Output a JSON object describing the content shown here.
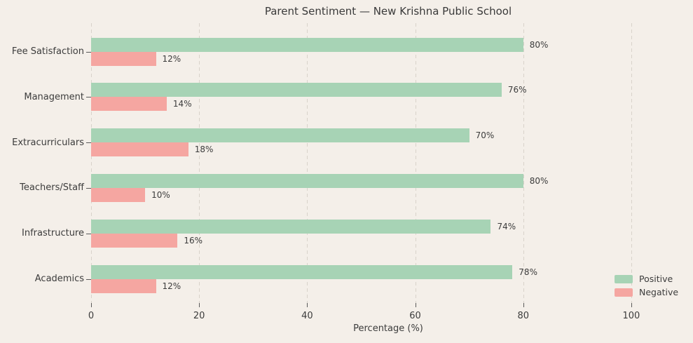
{
  "title": "Parent Sentiment — New Krishna Public School",
  "colors": {
    "background": "#f4efe9",
    "positive": "#a7d3b5",
    "negative": "#f5a6a1",
    "text": "#3c3c3c",
    "gridline": "#d8d2ca"
  },
  "chart_data": {
    "type": "bar",
    "orientation": "horizontal",
    "title": "Parent Sentiment — New Krishna Public School",
    "xlabel": "Percentage (%)",
    "ylabel": "",
    "categories": [
      "Fee Satisfaction",
      "Management",
      "Extracurriculars",
      "Teachers/Staff",
      "Infrastructure",
      "Academics"
    ],
    "series": [
      {
        "name": "Positive",
        "color": "#a7d3b5",
        "values": [
          80,
          76,
          70,
          80,
          74,
          78
        ]
      },
      {
        "name": "Negative",
        "color": "#f5a6a1",
        "values": [
          12,
          14,
          18,
          10,
          16,
          12
        ]
      }
    ],
    "value_labels": {
      "Positive": [
        "80%",
        "76%",
        "70%",
        "80%",
        "74%",
        "78%"
      ],
      "Negative": [
        "12%",
        "14%",
        "18%",
        "10%",
        "16%",
        "12%"
      ]
    },
    "xticks": [
      "0",
      "20",
      "40",
      "60",
      "80",
      "100"
    ],
    "xtick_values": [
      0,
      20,
      40,
      60,
      80,
      100
    ],
    "xlim": [
      0,
      110
    ],
    "grid": "vertical-dashed",
    "legend_position": "lower-right",
    "legend_entries": [
      "Positive",
      "Negative"
    ]
  }
}
